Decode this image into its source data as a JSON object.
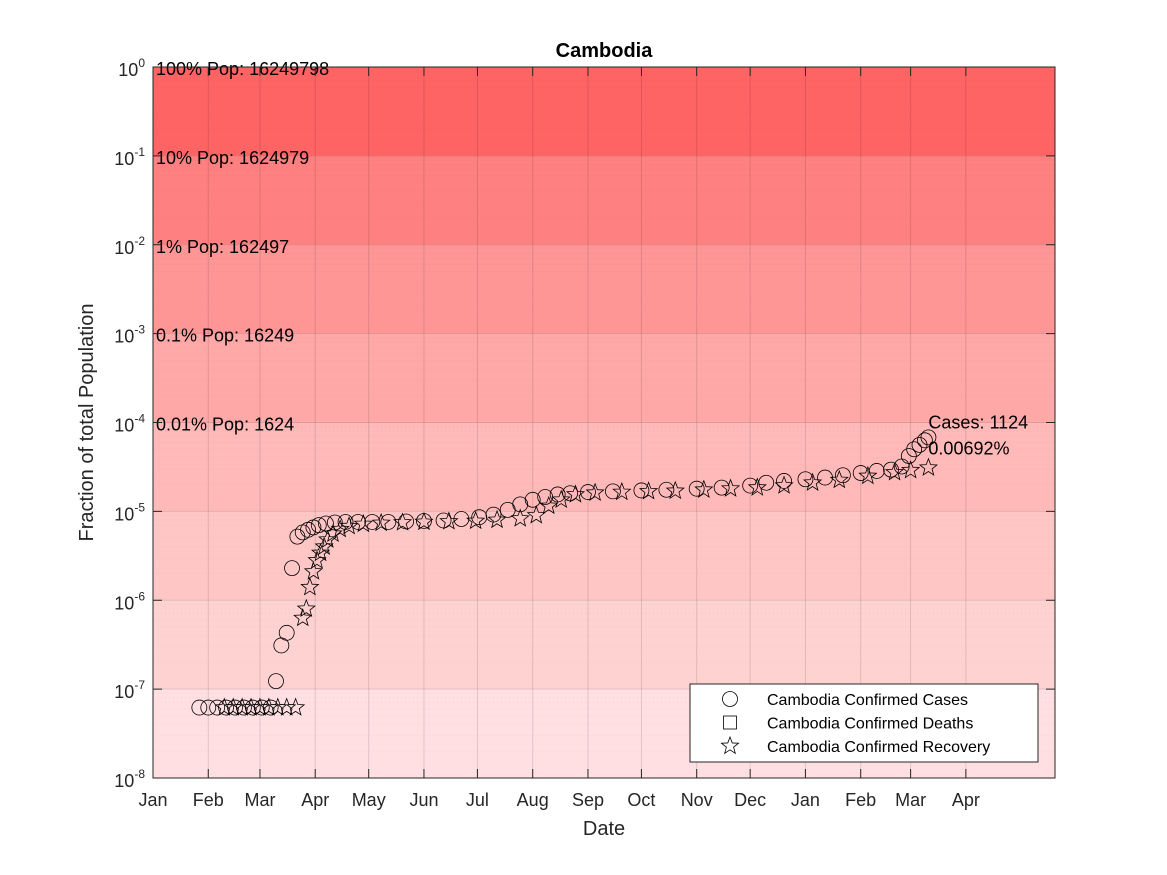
{
  "chart_data": {
    "type": "scatter",
    "title": "Cambodia",
    "xlabel": "Date",
    "ylabel": "Fraction of total Population",
    "yscale": "log",
    "ylim": [
      1e-08,
      1
    ],
    "xlim": [
      "2020-01-01",
      "2021-05-21"
    ],
    "x_ticks": [
      {
        "date": "2020-01-01",
        "label": "Jan"
      },
      {
        "date": "2020-02-01",
        "label": "Feb"
      },
      {
        "date": "2020-03-01",
        "label": "Mar"
      },
      {
        "date": "2020-04-01",
        "label": "Apr"
      },
      {
        "date": "2020-05-01",
        "label": "May"
      },
      {
        "date": "2020-06-01",
        "label": "Jun"
      },
      {
        "date": "2020-07-01",
        "label": "Jul"
      },
      {
        "date": "2020-08-01",
        "label": "Aug"
      },
      {
        "date": "2020-09-01",
        "label": "Sep"
      },
      {
        "date": "2020-10-01",
        "label": "Oct"
      },
      {
        "date": "2020-11-01",
        "label": "Nov"
      },
      {
        "date": "2020-12-01",
        "label": "Dec"
      },
      {
        "date": "2021-01-01",
        "label": "Jan"
      },
      {
        "date": "2021-02-01",
        "label": "Feb"
      },
      {
        "date": "2021-03-01",
        "label": "Mar"
      },
      {
        "date": "2021-04-01",
        "label": "Apr"
      }
    ],
    "y_ticks": [
      {
        "value": 1,
        "base": "10",
        "exp": "0"
      },
      {
        "value": 0.1,
        "base": "10",
        "exp": "-1"
      },
      {
        "value": 0.01,
        "base": "10",
        "exp": "-2"
      },
      {
        "value": 0.001,
        "base": "10",
        "exp": "-3"
      },
      {
        "value": 0.0001,
        "base": "10",
        "exp": "-4"
      },
      {
        "value": 1e-05,
        "base": "10",
        "exp": "-5"
      },
      {
        "value": 1e-06,
        "base": "10",
        "exp": "-6"
      },
      {
        "value": 1e-07,
        "base": "10",
        "exp": "-7"
      },
      {
        "value": 1e-08,
        "base": "10",
        "exp": "-8"
      }
    ],
    "grid": true,
    "bands": [
      {
        "from": 0.1,
        "to": 1,
        "color": "#ff6464",
        "label": "100% Pop: 16249798",
        "label_at": 1
      },
      {
        "from": 0.01,
        "to": 0.1,
        "color": "#ff8080",
        "label": "10% Pop: 1624979",
        "label_at": 0.1
      },
      {
        "from": 0.001,
        "to": 0.01,
        "color": "#ff9696",
        "label": "1% Pop: 162497",
        "label_at": 0.01
      },
      {
        "from": 0.0001,
        "to": 0.001,
        "color": "#ffa8a8",
        "label": "0.1% Pop: 16249",
        "label_at": 0.001
      },
      {
        "from": 1e-05,
        "to": 0.0001,
        "color": "#ffb9b9",
        "label": "0.01% Pop: 1624",
        "label_at": 0.0001
      },
      {
        "from": 1e-06,
        "to": 1e-05,
        "color": "#ffc6c6",
        "label": "",
        "label_at": 1e-05
      },
      {
        "from": 1e-07,
        "to": 1e-06,
        "color": "#ffd2d2",
        "label": "",
        "label_at": 1e-06
      },
      {
        "from": 1e-08,
        "to": 1e-07,
        "color": "#ffdfe2",
        "label": "",
        "label_at": 1e-07
      }
    ],
    "annotation": {
      "lines": [
        "Cases: 1124",
        "0.00692%"
      ],
      "date": "2021-03-11",
      "value": 6.92e-05
    },
    "series": [
      {
        "name": "Cambodia Confirmed Cases",
        "marker": "circle",
        "points": [
          [
            "2020-01-27",
            6.2e-08
          ],
          [
            "2020-02-01",
            6.2e-08
          ],
          [
            "2020-02-06",
            6.2e-08
          ],
          [
            "2020-02-11",
            6.2e-08
          ],
          [
            "2020-02-16",
            6.2e-08
          ],
          [
            "2020-02-21",
            6.2e-08
          ],
          [
            "2020-02-26",
            6.2e-08
          ],
          [
            "2020-03-02",
            6.2e-08
          ],
          [
            "2020-03-07",
            6.2e-08
          ],
          [
            "2020-03-10",
            1.23e-07
          ],
          [
            "2020-03-13",
            3.1e-07
          ],
          [
            "2020-03-16",
            4.3e-07
          ],
          [
            "2020-03-19",
            2.3e-06
          ],
          [
            "2020-03-22",
            5.2e-06
          ],
          [
            "2020-03-25",
            5.8e-06
          ],
          [
            "2020-03-28",
            6.2e-06
          ],
          [
            "2020-03-31",
            6.6e-06
          ],
          [
            "2020-04-03",
            7e-06
          ],
          [
            "2020-04-07",
            7.3e-06
          ],
          [
            "2020-04-12",
            7.5e-06
          ],
          [
            "2020-04-18",
            7.6e-06
          ],
          [
            "2020-04-25",
            7.6e-06
          ],
          [
            "2020-05-03",
            7.6e-06
          ],
          [
            "2020-05-12",
            7.6e-06
          ],
          [
            "2020-05-22",
            7.7e-06
          ],
          [
            "2020-06-01",
            7.8e-06
          ],
          [
            "2020-06-12",
            7.9e-06
          ],
          [
            "2020-06-22",
            8.2e-06
          ],
          [
            "2020-07-02",
            8.6e-06
          ],
          [
            "2020-07-10",
            9.2e-06
          ],
          [
            "2020-07-18",
            1.04e-05
          ],
          [
            "2020-07-25",
            1.2e-05
          ],
          [
            "2020-08-01",
            1.35e-05
          ],
          [
            "2020-08-08",
            1.45e-05
          ],
          [
            "2020-08-15",
            1.55e-05
          ],
          [
            "2020-08-22",
            1.6e-05
          ],
          [
            "2020-09-01",
            1.65e-05
          ],
          [
            "2020-09-15",
            1.68e-05
          ],
          [
            "2020-10-01",
            1.72e-05
          ],
          [
            "2020-10-15",
            1.75e-05
          ],
          [
            "2020-11-01",
            1.8e-05
          ],
          [
            "2020-11-15",
            1.85e-05
          ],
          [
            "2020-12-01",
            1.95e-05
          ],
          [
            "2020-12-10",
            2.1e-05
          ],
          [
            "2020-12-20",
            2.2e-05
          ],
          [
            "2021-01-01",
            2.3e-05
          ],
          [
            "2021-01-12",
            2.4e-05
          ],
          [
            "2021-01-22",
            2.55e-05
          ],
          [
            "2021-02-01",
            2.7e-05
          ],
          [
            "2021-02-10",
            2.85e-05
          ],
          [
            "2021-02-18",
            2.95e-05
          ],
          [
            "2021-02-24",
            3.2e-05
          ],
          [
            "2021-02-28",
            4.2e-05
          ],
          [
            "2021-03-03",
            5e-05
          ],
          [
            "2021-03-06",
            5.6e-05
          ],
          [
            "2021-03-09",
            6.3e-05
          ],
          [
            "2021-03-11",
            6.8e-05
          ]
        ]
      },
      {
        "name": "Cambodia Confirmed Deaths",
        "marker": "square",
        "points": []
      },
      {
        "name": "Cambodia Confirmed Recovery",
        "marker": "star",
        "points": [
          [
            "2020-02-10",
            6.2e-08
          ],
          [
            "2020-02-15",
            6.2e-08
          ],
          [
            "2020-02-20",
            6.2e-08
          ],
          [
            "2020-02-25",
            6.2e-08
          ],
          [
            "2020-03-01",
            6.2e-08
          ],
          [
            "2020-03-06",
            6.2e-08
          ],
          [
            "2020-03-11",
            6.2e-08
          ],
          [
            "2020-03-16",
            6.2e-08
          ],
          [
            "2020-03-21",
            6.2e-08
          ],
          [
            "2020-03-25",
            6.3e-07
          ],
          [
            "2020-03-27",
            8e-07
          ],
          [
            "2020-03-29",
            1.4e-06
          ],
          [
            "2020-03-31",
            2.1e-06
          ],
          [
            "2020-04-02",
            2.8e-06
          ],
          [
            "2020-04-04",
            3.4e-06
          ],
          [
            "2020-04-06",
            4e-06
          ],
          [
            "2020-04-08",
            4.8e-06
          ],
          [
            "2020-04-11",
            5.6e-06
          ],
          [
            "2020-04-15",
            6.3e-06
          ],
          [
            "2020-04-20",
            6.8e-06
          ],
          [
            "2020-04-28",
            7.2e-06
          ],
          [
            "2020-05-08",
            7.4e-06
          ],
          [
            "2020-05-20",
            7.5e-06
          ],
          [
            "2020-06-01",
            7.6e-06
          ],
          [
            "2020-06-15",
            7.7e-06
          ],
          [
            "2020-06-30",
            7.8e-06
          ],
          [
            "2020-07-12",
            8e-06
          ],
          [
            "2020-07-25",
            8.3e-06
          ],
          [
            "2020-08-03",
            9e-06
          ],
          [
            "2020-08-10",
            1.15e-05
          ],
          [
            "2020-08-17",
            1.35e-05
          ],
          [
            "2020-08-25",
            1.55e-05
          ],
          [
            "2020-09-05",
            1.62e-05
          ],
          [
            "2020-09-20",
            1.65e-05
          ],
          [
            "2020-10-05",
            1.68e-05
          ],
          [
            "2020-10-20",
            1.7e-05
          ],
          [
            "2020-11-05",
            1.75e-05
          ],
          [
            "2020-11-20",
            1.8e-05
          ],
          [
            "2020-12-05",
            1.85e-05
          ],
          [
            "2020-12-20",
            1.95e-05
          ],
          [
            "2021-01-05",
            2.1e-05
          ],
          [
            "2021-01-20",
            2.25e-05
          ],
          [
            "2021-02-05",
            2.5e-05
          ],
          [
            "2021-02-20",
            2.75e-05
          ],
          [
            "2021-03-01",
            2.9e-05
          ],
          [
            "2021-03-11",
            3.1e-05
          ]
        ]
      }
    ],
    "legend": {
      "position": "bottom-right",
      "entries": [
        {
          "marker": "circle",
          "label": "Cambodia Confirmed Cases"
        },
        {
          "marker": "square",
          "label": "Cambodia Confirmed Deaths"
        },
        {
          "marker": "star",
          "label": "Cambodia Confirmed Recovery"
        }
      ]
    }
  }
}
